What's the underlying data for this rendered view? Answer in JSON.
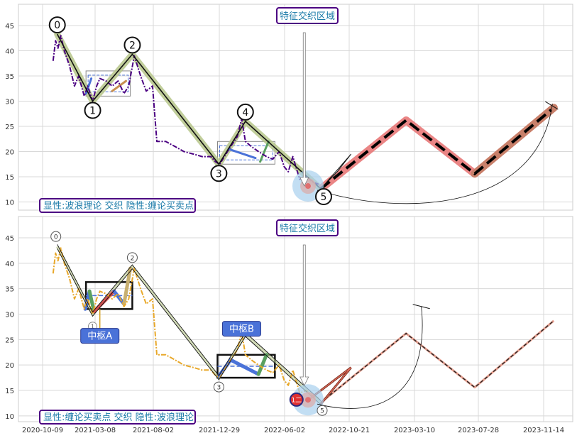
{
  "chart_data": [
    {
      "type": "line",
      "panel": "top",
      "ylim": [
        8,
        49
      ],
      "y_ticks": [
        10,
        15,
        20,
        25,
        30,
        35,
        40,
        45
      ],
      "grid": true,
      "series": [
        {
          "role": "price",
          "color": "#4b0082",
          "style": "dashdot",
          "x": [
            "2020-11-08",
            "2020-11-15",
            "2020-11-22",
            "2020-11-30",
            "2020-12-10",
            "2020-12-25",
            "2021-01-08",
            "2021-01-20",
            "2021-02-05",
            "2021-02-15",
            "2021-03-01",
            "2021-03-12",
            "2021-03-20",
            "2021-04-05",
            "2021-04-20",
            "2021-05-05",
            "2021-05-20",
            "2021-06-01",
            "2021-06-15",
            "2021-07-01",
            "2021-07-15",
            "2021-07-31",
            "2021-08-10",
            "2021-08-30",
            "2021-09-20",
            "2021-10-10",
            "2021-11-01",
            "2021-11-20",
            "2021-12-10",
            "2021-12-20",
            "2021-12-30",
            "2022-01-10",
            "2022-01-25",
            "2022-02-10",
            "2022-02-20",
            "2022-03-01",
            "2022-03-15",
            "2022-04-01",
            "2022-04-20",
            "2022-05-05",
            "2022-05-20",
            "2022-06-01",
            "2022-06-10",
            "2022-06-20",
            "2022-07-05",
            "2022-07-20",
            "2022-08-01",
            "2022-08-15"
          ],
          "y": [
            38,
            42,
            40.5,
            43,
            40,
            37,
            33,
            35,
            31,
            33,
            30,
            33,
            34.5,
            34,
            33,
            34,
            31.5,
            33,
            39,
            35,
            32,
            33,
            22,
            22,
            21,
            20,
            19.5,
            19,
            19,
            18,
            17.5,
            19,
            21,
            23,
            26.5,
            22,
            21,
            20,
            19,
            18.5,
            20,
            17,
            16,
            19,
            14.5,
            15,
            14,
            13.5
          ]
        },
        {
          "role": "wave",
          "name": "波浪",
          "color": "#000000",
          "x": [
            "2020-11-20",
            "2021-03-01",
            "2021-06-10",
            "2021-12-28",
            "2022-03-01",
            "2022-08-20"
          ],
          "y": [
            43.3,
            30,
            39.3,
            17.5,
            26,
            12.6
          ],
          "labels": [
            "0",
            "1",
            "2",
            "3",
            "4",
            "5"
          ]
        },
        {
          "role": "forecast",
          "color": "#000000",
          "style": "dashed",
          "x": [
            "2022-08-20",
            "2023-02-20",
            "2023-07-20",
            "2023-12-01"
          ],
          "y": [
            12.6,
            26.2,
            15.6,
            28.7
          ]
        }
      ],
      "zones": [
        {
          "x": [
            "2021-02-10",
            "2021-06-05"
          ],
          "y": [
            31,
            36
          ]
        },
        {
          "x": [
            "2021-12-25",
            "2022-05-10"
          ],
          "y": [
            17.5,
            22
          ]
        }
      ],
      "annotations": {
        "title_box": "特征交织区域",
        "legend_box": "显性:波浪理论 交织 隐性:缠论买卖点"
      }
    },
    {
      "type": "line",
      "panel": "bottom",
      "ylim": [
        8,
        49
      ],
      "y_ticks": [
        10,
        15,
        20,
        25,
        30,
        35,
        40,
        45
      ],
      "grid": true,
      "series": [
        {
          "role": "price",
          "color": "#e8a82a",
          "style": "dashdot",
          "x": [
            "2020-11-08",
            "2020-11-15",
            "2020-11-22",
            "2020-11-30",
            "2020-12-10",
            "2020-12-25",
            "2021-01-08",
            "2021-01-20",
            "2021-02-05",
            "2021-02-15",
            "2021-03-01",
            "2021-03-12",
            "2021-03-20",
            "2021-04-05",
            "2021-04-20",
            "2021-05-05",
            "2021-05-20",
            "2021-06-01",
            "2021-06-15",
            "2021-07-01",
            "2021-07-15",
            "2021-07-31",
            "2021-08-10",
            "2021-08-30",
            "2021-09-20",
            "2021-10-10",
            "2021-11-01",
            "2021-11-20",
            "2021-12-10",
            "2021-12-20",
            "2021-12-30",
            "2022-01-10",
            "2022-01-25",
            "2022-02-10",
            "2022-02-20",
            "2022-03-01",
            "2022-03-15",
            "2022-04-01",
            "2022-04-20",
            "2022-05-05",
            "2022-05-20",
            "2022-06-01",
            "2022-06-10",
            "2022-06-20",
            "2022-07-05",
            "2022-07-20",
            "2022-08-01",
            "2022-08-15"
          ],
          "y": [
            38,
            42,
            40.5,
            43,
            40,
            37,
            33,
            35,
            31,
            33,
            30,
            33,
            34.5,
            34,
            33,
            34,
            31.5,
            33,
            39,
            35,
            32,
            33,
            22,
            22,
            21,
            20,
            19.5,
            19,
            19,
            18,
            17.5,
            19,
            21,
            23,
            26.5,
            22,
            21,
            20,
            19,
            18.5,
            20,
            17,
            16,
            19,
            14.5,
            15,
            14,
            13.5
          ]
        },
        {
          "role": "wave",
          "color": "#000000",
          "x": [
            "2020-11-20",
            "2021-03-01",
            "2021-06-10",
            "2021-12-28",
            "2022-03-01",
            "2022-08-20"
          ],
          "y": [
            43.3,
            30,
            39.3,
            17.5,
            26,
            12.6
          ],
          "labels": [
            "0",
            "2",
            "3",
            "5"
          ]
        },
        {
          "role": "forecast",
          "color": "#e07060",
          "style": "dashed",
          "x": [
            "2022-08-20",
            "2023-02-20",
            "2023-07-20",
            "2023-12-01"
          ],
          "y": [
            12.6,
            26.2,
            15.6,
            28.7
          ]
        }
      ],
      "zones": [
        {
          "name": "中枢A",
          "x": [
            "2021-02-10",
            "2021-06-10"
          ],
          "y": [
            31,
            36.3
          ]
        },
        {
          "name": "中枢B",
          "x": [
            "2021-12-25",
            "2022-05-10"
          ],
          "y": [
            17.5,
            22
          ]
        }
      ],
      "annotations": {
        "title_box": "特征交织区域",
        "legend_box": "显性:缠论买卖点 交织 隐性:波浪理论",
        "point_label": "1二",
        "marker_label": "1"
      }
    }
  ],
  "x_axis": {
    "ticks": [
      "2020-10-09",
      "2021-03-08",
      "2021-08-02",
      "2021-12-29",
      "2022-06-02",
      "2022-10-21",
      "2023-03-10",
      "2023-07-28",
      "2023-11-14"
    ]
  },
  "colors": {
    "wave_shadow": "#b6c58a",
    "forecast_red": "#e87878",
    "forecast_brown": "#c8806a",
    "box_border": "#4b0082",
    "box_text": "#1a7aa8",
    "label_box_blue": "#4a72d8",
    "highlight_blue": "#a8d0ee",
    "highlight_red": "#e07070"
  }
}
